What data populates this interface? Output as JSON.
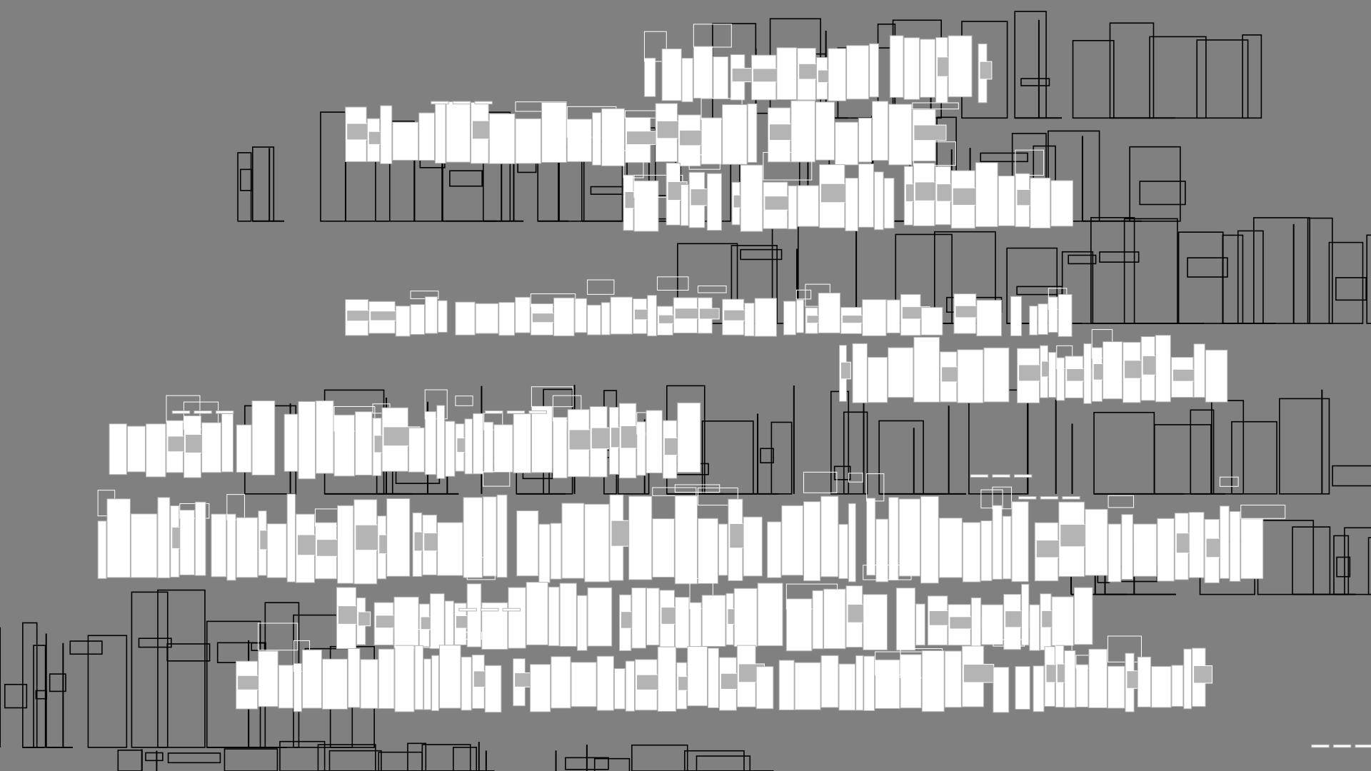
{
  "colors": {
    "background": "#808080",
    "bar_fill": "#ffffff",
    "bar_stroke": "#b4b4b4",
    "outline_stroke": "#000000"
  }
}
